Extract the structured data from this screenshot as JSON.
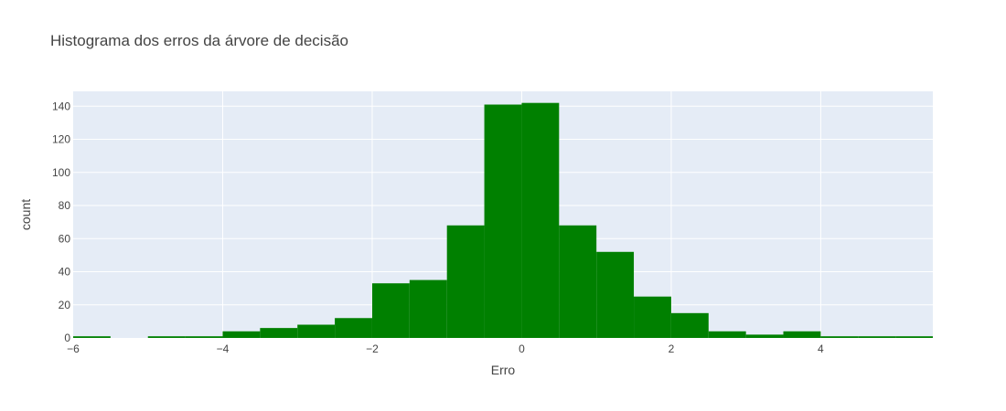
{
  "chart_data": {
    "type": "bar",
    "title": "Histograma dos erros da árvore de decisão",
    "xlabel": "Erro",
    "ylabel": "count",
    "xlim": [
      -6,
      5.5
    ],
    "ylim": [
      0,
      149
    ],
    "bin_width": 0.5,
    "bins": [
      {
        "start": -6.0,
        "count": 1
      },
      {
        "start": -5.5,
        "count": 0
      },
      {
        "start": -5.0,
        "count": 1
      },
      {
        "start": -4.5,
        "count": 1
      },
      {
        "start": -4.0,
        "count": 4
      },
      {
        "start": -3.5,
        "count": 6
      },
      {
        "start": -3.0,
        "count": 8
      },
      {
        "start": -2.5,
        "count": 12
      },
      {
        "start": -2.0,
        "count": 33
      },
      {
        "start": -1.5,
        "count": 35
      },
      {
        "start": -1.0,
        "count": 68
      },
      {
        "start": -0.5,
        "count": 141
      },
      {
        "start": 0.0,
        "count": 142
      },
      {
        "start": 0.5,
        "count": 68
      },
      {
        "start": 1.0,
        "count": 52
      },
      {
        "start": 1.5,
        "count": 25
      },
      {
        "start": 2.0,
        "count": 15
      },
      {
        "start": 2.5,
        "count": 4
      },
      {
        "start": 3.0,
        "count": 2
      },
      {
        "start": 3.5,
        "count": 4
      },
      {
        "start": 4.0,
        "count": 1
      },
      {
        "start": 4.5,
        "count": 1
      },
      {
        "start": 5.0,
        "count": 1
      }
    ],
    "x_ticks": [
      {
        "value": -6,
        "label": "−6"
      },
      {
        "value": -4,
        "label": "−4"
      },
      {
        "value": -2,
        "label": "−2"
      },
      {
        "value": 0,
        "label": "0"
      },
      {
        "value": 2,
        "label": "2"
      },
      {
        "value": 4,
        "label": "4"
      }
    ],
    "y_ticks": [
      {
        "value": 0,
        "label": "0"
      },
      {
        "value": 20,
        "label": "20"
      },
      {
        "value": 40,
        "label": "40"
      },
      {
        "value": 60,
        "label": "60"
      },
      {
        "value": 80,
        "label": "80"
      },
      {
        "value": 100,
        "label": "100"
      },
      {
        "value": 120,
        "label": "120"
      },
      {
        "value": 140,
        "label": "140"
      }
    ],
    "grid": true,
    "colors": {
      "bar": "#008000",
      "plot_bg": "#E5ECF6",
      "grid": "#FFFFFF",
      "text": "#444444"
    }
  }
}
